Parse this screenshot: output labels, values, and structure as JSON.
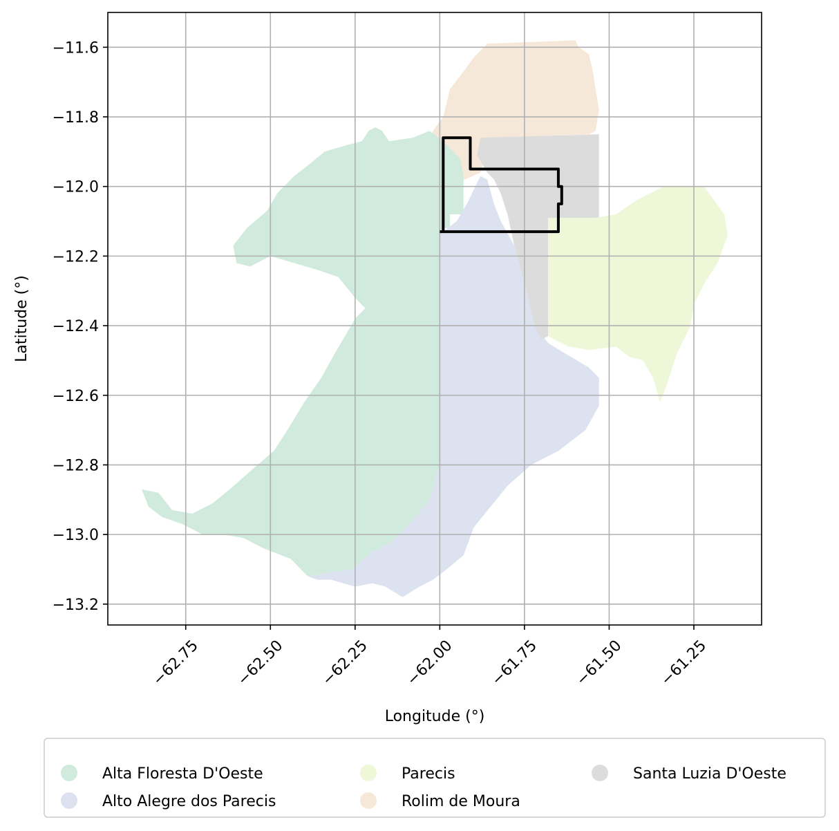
{
  "map": {
    "xlabel": "Longitude (°)",
    "ylabel": "Latitude (°)",
    "xlim": [
      -62.98,
      -61.05
    ],
    "ylim": [
      -13.26,
      -11.5
    ],
    "xticks": [
      -62.75,
      -62.5,
      -62.25,
      -62.0,
      -61.75,
      -61.5,
      -61.25
    ],
    "xtick_labels": [
      "−62.75",
      "−62.50",
      "−62.25",
      "−62.00",
      "−61.75",
      "−61.50",
      "−61.25"
    ],
    "yticks": [
      -11.6,
      -11.8,
      -12.0,
      -12.2,
      -12.4,
      -12.6,
      -12.8,
      -13.0,
      -13.2
    ],
    "ytick_labels": [
      "−11.6",
      "−11.8",
      "−12.0",
      "−12.2",
      "−12.4",
      "−12.6",
      "−12.8",
      "−13.0",
      "−13.2"
    ],
    "grid": true,
    "regions": [
      {
        "name": "Rolim de Moura",
        "color": "#f5e8d8",
        "points": [
          [
            -61.86,
            -11.59
          ],
          [
            -61.6,
            -11.58
          ],
          [
            -61.59,
            -11.6
          ],
          [
            -61.56,
            -11.62
          ],
          [
            -61.55,
            -11.66
          ],
          [
            -61.54,
            -11.72
          ],
          [
            -61.53,
            -11.78
          ],
          [
            -61.54,
            -11.84
          ],
          [
            -61.56,
            -11.85
          ],
          [
            -61.85,
            -11.86
          ],
          [
            -61.88,
            -11.96
          ],
          [
            -61.95,
            -11.99
          ],
          [
            -62.0,
            -11.98
          ],
          [
            -62.03,
            -11.88
          ],
          [
            -62.02,
            -11.84
          ],
          [
            -61.99,
            -11.8
          ],
          [
            -61.97,
            -11.72
          ],
          [
            -61.93,
            -11.67
          ],
          [
            -61.9,
            -11.63
          ]
        ]
      },
      {
        "name": "Alta Floresta D'Oeste",
        "color": "#d0ebde",
        "points": [
          [
            -62.19,
            -11.83
          ],
          [
            -62.17,
            -11.84
          ],
          [
            -62.15,
            -11.87
          ],
          [
            -62.08,
            -11.86
          ],
          [
            -62.03,
            -11.84
          ],
          [
            -61.99,
            -11.87
          ],
          [
            -61.94,
            -11.92
          ],
          [
            -61.93,
            -11.97
          ],
          [
            -61.93,
            -12.08
          ],
          [
            -61.97,
            -12.08
          ],
          [
            -61.97,
            -12.12
          ],
          [
            -61.99,
            -12.12
          ],
          [
            -62.0,
            -12.13
          ],
          [
            -62.0,
            -12.5
          ],
          [
            -62.0,
            -12.8
          ],
          [
            -62.03,
            -12.9
          ],
          [
            -62.08,
            -12.96
          ],
          [
            -62.14,
            -13.02
          ],
          [
            -62.2,
            -13.05
          ],
          [
            -62.26,
            -13.1
          ],
          [
            -62.33,
            -13.11
          ],
          [
            -62.39,
            -13.12
          ],
          [
            -62.41,
            -13.1
          ],
          [
            -62.44,
            -13.07
          ],
          [
            -62.52,
            -13.04
          ],
          [
            -62.58,
            -13.01
          ],
          [
            -62.64,
            -13.0
          ],
          [
            -62.7,
            -13.0
          ],
          [
            -62.76,
            -12.97
          ],
          [
            -62.82,
            -12.95
          ],
          [
            -62.86,
            -12.92
          ],
          [
            -62.88,
            -12.87
          ],
          [
            -62.83,
            -12.88
          ],
          [
            -62.79,
            -12.93
          ],
          [
            -62.73,
            -12.94
          ],
          [
            -62.67,
            -12.91
          ],
          [
            -62.62,
            -12.87
          ],
          [
            -62.55,
            -12.81
          ],
          [
            -62.49,
            -12.76
          ],
          [
            -62.45,
            -12.7
          ],
          [
            -62.4,
            -12.62
          ],
          [
            -62.35,
            -12.55
          ],
          [
            -62.31,
            -12.48
          ],
          [
            -62.28,
            -12.43
          ],
          [
            -62.25,
            -12.38
          ],
          [
            -62.22,
            -12.35
          ],
          [
            -62.25,
            -12.32
          ],
          [
            -62.3,
            -12.26
          ],
          [
            -62.36,
            -12.24
          ],
          [
            -62.43,
            -12.22
          ],
          [
            -62.5,
            -12.2
          ],
          [
            -62.56,
            -12.23
          ],
          [
            -62.6,
            -12.22
          ],
          [
            -62.61,
            -12.17
          ],
          [
            -62.57,
            -12.12
          ],
          [
            -62.51,
            -12.07
          ],
          [
            -62.48,
            -12.02
          ],
          [
            -62.43,
            -11.97
          ],
          [
            -62.39,
            -11.94
          ],
          [
            -62.34,
            -11.9
          ],
          [
            -62.27,
            -11.88
          ],
          [
            -62.23,
            -11.87
          ],
          [
            -62.21,
            -11.84
          ]
        ]
      },
      {
        "name": "Alto Alegre dos Parecis",
        "color": "#dde2f0",
        "points": [
          [
            -61.99,
            -12.13
          ],
          [
            -61.95,
            -12.1
          ],
          [
            -61.92,
            -12.05
          ],
          [
            -61.88,
            -11.97
          ],
          [
            -61.86,
            -11.98
          ],
          [
            -61.84,
            -12.05
          ],
          [
            -61.82,
            -12.1
          ],
          [
            -61.78,
            -12.17
          ],
          [
            -61.75,
            -12.28
          ],
          [
            -61.72,
            -12.4
          ],
          [
            -61.68,
            -12.45
          ],
          [
            -61.63,
            -12.48
          ],
          [
            -61.56,
            -12.52
          ],
          [
            -61.53,
            -12.55
          ],
          [
            -61.53,
            -12.63
          ],
          [
            -61.57,
            -12.7
          ],
          [
            -61.65,
            -12.76
          ],
          [
            -61.73,
            -12.8
          ],
          [
            -61.8,
            -12.86
          ],
          [
            -61.85,
            -12.92
          ],
          [
            -61.9,
            -12.98
          ],
          [
            -61.93,
            -13.06
          ],
          [
            -61.98,
            -13.1
          ],
          [
            -62.02,
            -13.13
          ],
          [
            -62.06,
            -13.15
          ],
          [
            -62.11,
            -13.18
          ],
          [
            -62.16,
            -13.15
          ],
          [
            -62.2,
            -13.14
          ],
          [
            -62.25,
            -13.15
          ],
          [
            -62.32,
            -13.13
          ],
          [
            -62.36,
            -13.13
          ],
          [
            -62.39,
            -13.12
          ],
          [
            -62.33,
            -13.11
          ],
          [
            -62.26,
            -13.1
          ],
          [
            -62.2,
            -13.05
          ],
          [
            -62.14,
            -13.02
          ],
          [
            -62.08,
            -12.96
          ],
          [
            -62.03,
            -12.9
          ],
          [
            -62.0,
            -12.8
          ],
          [
            -62.0,
            -12.5
          ],
          [
            -62.0,
            -12.13
          ]
        ]
      },
      {
        "name": "Santa Luzia D'Oeste",
        "color": "#dcdcdc",
        "points": [
          [
            -61.88,
            -11.86
          ],
          [
            -61.53,
            -11.85
          ],
          [
            -61.53,
            -12.09
          ],
          [
            -61.68,
            -12.09
          ],
          [
            -61.68,
            -12.43
          ],
          [
            -61.7,
            -12.44
          ],
          [
            -61.72,
            -12.4
          ],
          [
            -61.75,
            -12.28
          ],
          [
            -61.78,
            -12.17
          ],
          [
            -61.8,
            -12.08
          ],
          [
            -61.82,
            -12.02
          ],
          [
            -61.84,
            -11.98
          ],
          [
            -61.86,
            -11.96
          ],
          [
            -61.89,
            -11.91
          ]
        ]
      },
      {
        "name": "Parecis",
        "color": "#eef8d9",
        "points": [
          [
            -61.68,
            -12.09
          ],
          [
            -61.54,
            -12.09
          ],
          [
            -61.48,
            -12.08
          ],
          [
            -61.42,
            -12.04
          ],
          [
            -61.34,
            -12.0
          ],
          [
            -61.22,
            -12.0
          ],
          [
            -61.19,
            -12.04
          ],
          [
            -61.16,
            -12.08
          ],
          [
            -61.15,
            -12.14
          ],
          [
            -61.18,
            -12.22
          ],
          [
            -61.22,
            -12.28
          ],
          [
            -61.25,
            -12.34
          ],
          [
            -61.26,
            -12.4
          ],
          [
            -61.3,
            -12.48
          ],
          [
            -61.33,
            -12.57
          ],
          [
            -61.35,
            -12.62
          ],
          [
            -61.37,
            -12.55
          ],
          [
            -61.4,
            -12.5
          ],
          [
            -61.44,
            -12.49
          ],
          [
            -61.48,
            -12.46
          ],
          [
            -61.56,
            -12.47
          ],
          [
            -61.62,
            -12.46
          ],
          [
            -61.68,
            -12.43
          ]
        ]
      }
    ],
    "highlight": {
      "color": "#000000",
      "points": [
        [
          -62.0,
          -12.13
        ],
        [
          -61.99,
          -12.13
        ],
        [
          -61.99,
          -11.86
        ],
        [
          -61.91,
          -11.86
        ],
        [
          -61.91,
          -11.95
        ],
        [
          -61.65,
          -11.95
        ],
        [
          -61.65,
          -12.0
        ],
        [
          -61.64,
          -12.0
        ],
        [
          -61.64,
          -12.05
        ],
        [
          -61.65,
          -12.05
        ],
        [
          -61.65,
          -12.13
        ],
        [
          -62.0,
          -12.13
        ]
      ]
    },
    "legend": {
      "placement": "below",
      "columns": [
        [
          {
            "label": "Alta Floresta D'Oeste",
            "color": "#d0ebde"
          },
          {
            "label": "Alto Alegre dos Parecis",
            "color": "#dde2f0"
          }
        ],
        [
          {
            "label": "Parecis",
            "color": "#eef8d9"
          },
          {
            "label": "Rolim de Moura",
            "color": "#f5e8d8"
          }
        ],
        [
          {
            "label": "Santa Luzia D'Oeste",
            "color": "#dcdcdc"
          }
        ]
      ]
    }
  }
}
